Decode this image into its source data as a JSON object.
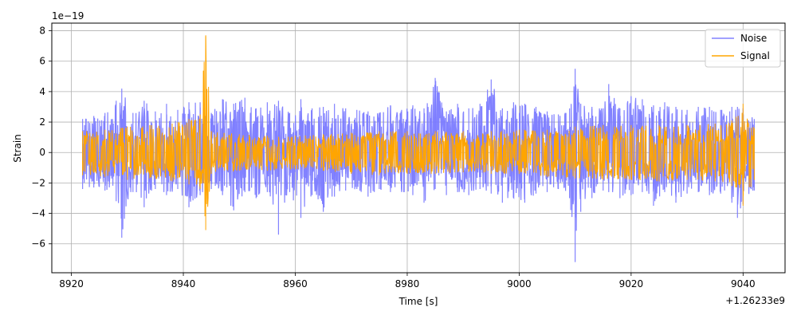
{
  "chart_data": {
    "type": "line",
    "title": "",
    "xlabel": "Time [s]",
    "ylabel": "Strain",
    "x_offset_label": "+1.26233e9",
    "y_scale_label": "1e−19",
    "xlim": [
      8916.5,
      9047.5
    ],
    "ylim": [
      -7.9,
      8.5
    ],
    "x_start": 8922,
    "x_end": 9042,
    "x_ticks": [
      8920,
      8940,
      8960,
      8980,
      9000,
      9020,
      9040
    ],
    "y_ticks": [
      -6,
      -4,
      -2,
      0,
      2,
      4,
      6,
      8
    ],
    "y_tick_labels": [
      "−6",
      "−4",
      "−2",
      "0",
      "2",
      "4",
      "6",
      "8"
    ],
    "grid": true,
    "legend_position": "top-right",
    "series": [
      {
        "name": "Noise",
        "color": "#7b7bff",
        "envelope": [
          [
            8922,
            2.2,
            -2.4
          ],
          [
            8924,
            2.4,
            -2.3
          ],
          [
            8926,
            2.6,
            -2.5
          ],
          [
            8928,
            3.4,
            -3.2
          ],
          [
            8929,
            4.2,
            -5.6
          ],
          [
            8931,
            2.6,
            -2.6
          ],
          [
            8933,
            3.4,
            -3.6
          ],
          [
            8935,
            2.7,
            -2.4
          ],
          [
            8937,
            3.2,
            -2.8
          ],
          [
            8939,
            2.8,
            -2.4
          ],
          [
            8941,
            3.3,
            -3.6
          ],
          [
            8943,
            3.3,
            -2.8
          ],
          [
            8945,
            2.6,
            -2.4
          ],
          [
            8947,
            3.5,
            -2.8
          ],
          [
            8949,
            3.2,
            -3.8
          ],
          [
            8951,
            3.6,
            -2.6
          ],
          [
            8953,
            2.9,
            -3.0
          ],
          [
            8955,
            3.3,
            -2.6
          ],
          [
            8957,
            3.4,
            -5.4
          ],
          [
            8959,
            2.6,
            -2.6
          ],
          [
            8961,
            3.5,
            -4.3
          ],
          [
            8963,
            2.9,
            -2.8
          ],
          [
            8965,
            3.0,
            -3.9
          ],
          [
            8967,
            3.2,
            -2.9
          ],
          [
            8969,
            2.9,
            -2.5
          ],
          [
            8971,
            2.8,
            -2.4
          ],
          [
            8973,
            2.7,
            -2.9
          ],
          [
            8975,
            2.6,
            -2.4
          ],
          [
            8977,
            3.1,
            -2.6
          ],
          [
            8979,
            2.8,
            -2.6
          ],
          [
            8981,
            3.1,
            -2.8
          ],
          [
            8983,
            2.9,
            -3.3
          ],
          [
            8985,
            4.9,
            -2.4
          ],
          [
            8987,
            2.7,
            -2.8
          ],
          [
            8989,
            3.2,
            -2.6
          ],
          [
            8991,
            2.9,
            -2.8
          ],
          [
            8993,
            3.2,
            -2.4
          ],
          [
            8995,
            4.8,
            -2.7
          ],
          [
            8997,
            2.9,
            -3.3
          ],
          [
            8999,
            3.3,
            -3.0
          ],
          [
            9001,
            3.2,
            -3.3
          ],
          [
            9003,
            3.0,
            -2.7
          ],
          [
            9005,
            2.7,
            -2.6
          ],
          [
            9007,
            2.5,
            -2.4
          ],
          [
            9009,
            2.9,
            -3.0
          ],
          [
            9010,
            5.5,
            -7.2
          ],
          [
            9011,
            3.2,
            -3.9
          ],
          [
            9013,
            3.0,
            -3.0
          ],
          [
            9015,
            2.9,
            -2.5
          ],
          [
            9016,
            4.5,
            -2.6
          ],
          [
            9018,
            2.9,
            -3.0
          ],
          [
            9020,
            3.7,
            -2.8
          ],
          [
            9022,
            3.5,
            -2.6
          ],
          [
            9024,
            3.1,
            -3.5
          ],
          [
            9026,
            3.3,
            -2.6
          ],
          [
            9028,
            3.0,
            -3.3
          ],
          [
            9030,
            2.8,
            -2.7
          ],
          [
            9032,
            3.0,
            -2.6
          ],
          [
            9034,
            3.0,
            -2.8
          ],
          [
            9036,
            2.8,
            -2.7
          ],
          [
            9038,
            3.0,
            -3.3
          ],
          [
            9039,
            3.0,
            -4.3
          ],
          [
            9040,
            2.9,
            -3.4
          ],
          [
            9042,
            2.2,
            -2.5
          ]
        ]
      },
      {
        "name": "Signal",
        "color": "#ffa500",
        "envelope": [
          [
            8922,
            1.4,
            -1.5
          ],
          [
            8926,
            1.5,
            -1.6
          ],
          [
            8930,
            1.7,
            -1.8
          ],
          [
            8934,
            1.8,
            -1.7
          ],
          [
            8938,
            1.9,
            -1.9
          ],
          [
            8941,
            2.2,
            -2.1
          ],
          [
            8943,
            2.5,
            -2.4
          ],
          [
            8944,
            7.7,
            -5.1
          ],
          [
            8945,
            1.4,
            -1.4
          ],
          [
            8950,
            1.2,
            -1.2
          ],
          [
            8955,
            1.1,
            -1.2
          ],
          [
            8960,
            1.1,
            -1.1
          ],
          [
            8965,
            1.2,
            -1.2
          ],
          [
            8970,
            1.3,
            -1.4
          ],
          [
            8975,
            1.4,
            -1.5
          ],
          [
            8980,
            1.4,
            -1.4
          ],
          [
            8985,
            1.4,
            -1.4
          ],
          [
            8990,
            1.4,
            -1.3
          ],
          [
            8995,
            1.4,
            -1.4
          ],
          [
            9000,
            1.5,
            -1.4
          ],
          [
            9005,
            1.5,
            -1.6
          ],
          [
            9010,
            1.7,
            -1.7
          ],
          [
            9015,
            1.8,
            -1.8
          ],
          [
            9020,
            1.8,
            -1.8
          ],
          [
            9025,
            1.8,
            -1.9
          ],
          [
            9030,
            1.8,
            -1.8
          ],
          [
            9035,
            1.9,
            -1.9
          ],
          [
            9038,
            2.1,
            -2.2
          ],
          [
            9040,
            3.2,
            -3.5
          ],
          [
            9042,
            1.6,
            -1.8
          ]
        ]
      }
    ]
  }
}
